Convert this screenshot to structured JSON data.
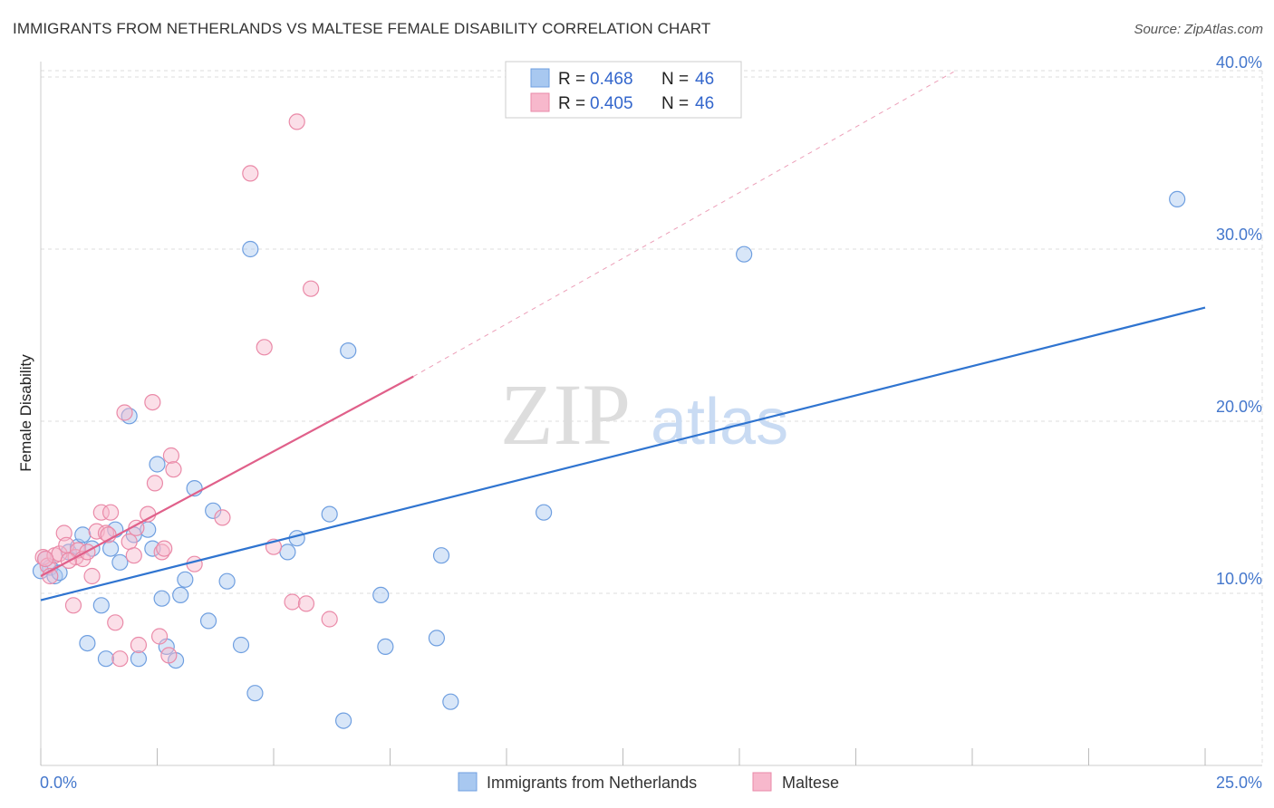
{
  "header": {
    "title": "IMMIGRANTS FROM NETHERLANDS VS MALTESE FEMALE DISABILITY CORRELATION CHART",
    "source": "Source: ZipAtlas.com"
  },
  "watermark": {
    "zip": "ZIP",
    "atlas": "atlas"
  },
  "colors": {
    "blue_fill": "#a8c8f0",
    "blue_stroke": "#6f9fe0",
    "blue_line": "#2f74d0",
    "pink_fill": "#f7b8cc",
    "pink_stroke": "#ea8aa8",
    "pink_line": "#e0608a",
    "grid": "#dddddd",
    "tick": "#4477cc"
  },
  "legend": {
    "rows": [
      {
        "r_label": "R =",
        "r_value": "0.468",
        "n_label": "N =",
        "n_value": "46"
      },
      {
        "r_label": "R =",
        "r_value": "0.405",
        "n_label": "N =",
        "n_value": "46"
      }
    ]
  },
  "chart_data": {
    "type": "scatter",
    "title": "IMMIGRANTS FROM NETHERLANDS VS MALTESE FEMALE DISABILITY CORRELATION CHART",
    "xlabel": "",
    "ylabel": "Female Disability",
    "xlim": [
      0,
      25
    ],
    "ylim": [
      0,
      41
    ],
    "x_tick_labels": [
      "0.0%",
      "25.0%"
    ],
    "y_ticks": [
      10,
      20,
      30,
      40
    ],
    "y_tick_labels": [
      "10.0%",
      "20.0%",
      "30.0%",
      "40.0%"
    ],
    "grid": "horizontal dashed",
    "legend_position": "top-center and bottom",
    "series": [
      {
        "name": "Immigrants from Netherlands",
        "color": "#a8c8f0",
        "r": 0.468,
        "n": 46,
        "trend": {
          "x0": 0.0,
          "y0": 9.6,
          "x1": 25.0,
          "y1": 26.6,
          "style": "solid"
        },
        "points": [
          [
            0.1,
            12.0
          ],
          [
            0.2,
            11.5
          ],
          [
            0.3,
            11.0
          ],
          [
            0.4,
            11.2
          ],
          [
            0.6,
            12.4
          ],
          [
            0.8,
            12.7
          ],
          [
            0.9,
            13.4
          ],
          [
            1.0,
            7.1
          ],
          [
            1.1,
            12.6
          ],
          [
            1.3,
            9.3
          ],
          [
            1.4,
            6.2
          ],
          [
            1.5,
            12.6
          ],
          [
            1.6,
            13.7
          ],
          [
            1.7,
            11.8
          ],
          [
            1.9,
            20.3
          ],
          [
            2.0,
            13.4
          ],
          [
            2.1,
            6.2
          ],
          [
            2.3,
            13.7
          ],
          [
            2.4,
            12.6
          ],
          [
            2.5,
            17.5
          ],
          [
            2.6,
            9.7
          ],
          [
            2.7,
            6.9
          ],
          [
            2.9,
            6.1
          ],
          [
            3.0,
            9.9
          ],
          [
            3.1,
            10.8
          ],
          [
            3.3,
            16.1
          ],
          [
            3.6,
            8.4
          ],
          [
            3.7,
            14.8
          ],
          [
            4.0,
            10.7
          ],
          [
            4.3,
            7.0
          ],
          [
            4.5,
            30.0
          ],
          [
            4.6,
            4.2
          ],
          [
            5.3,
            12.4
          ],
          [
            5.5,
            13.2
          ],
          [
            6.2,
            14.6
          ],
          [
            6.5,
            2.6
          ],
          [
            6.6,
            24.1
          ],
          [
            7.3,
            9.9
          ],
          [
            7.4,
            6.9
          ],
          [
            8.5,
            7.4
          ],
          [
            8.6,
            12.2
          ],
          [
            8.8,
            3.7
          ],
          [
            10.8,
            14.7
          ],
          [
            15.1,
            29.7
          ],
          [
            24.4,
            32.9
          ],
          [
            0.0,
            11.3
          ]
        ]
      },
      {
        "name": "Maltese",
        "color": "#f7b8cc",
        "r": 0.405,
        "n": 46,
        "trend": {
          "x0": 0.0,
          "y0": 11.0,
          "x1": 8.0,
          "y1": 22.6,
          "style": "solid",
          "dashed_extension": {
            "x1": 19.6,
            "y1": 40.3
          }
        },
        "points": [
          [
            0.05,
            12.1
          ],
          [
            0.15,
            11.6
          ],
          [
            0.2,
            11.0
          ],
          [
            0.3,
            12.2
          ],
          [
            0.4,
            12.3
          ],
          [
            0.5,
            13.5
          ],
          [
            0.55,
            12.8
          ],
          [
            0.7,
            9.3
          ],
          [
            0.75,
            12.1
          ],
          [
            0.8,
            12.5
          ],
          [
            0.9,
            12.0
          ],
          [
            1.0,
            12.4
          ],
          [
            1.1,
            11.0
          ],
          [
            1.2,
            13.6
          ],
          [
            1.3,
            14.7
          ],
          [
            1.4,
            13.5
          ],
          [
            1.5,
            14.7
          ],
          [
            1.6,
            8.3
          ],
          [
            1.7,
            6.2
          ],
          [
            1.8,
            20.5
          ],
          [
            1.9,
            13.0
          ],
          [
            2.0,
            12.2
          ],
          [
            2.05,
            13.8
          ],
          [
            2.1,
            7.0
          ],
          [
            2.3,
            14.6
          ],
          [
            2.4,
            21.1
          ],
          [
            2.45,
            16.4
          ],
          [
            2.55,
            7.5
          ],
          [
            2.6,
            12.4
          ],
          [
            2.65,
            12.6
          ],
          [
            2.75,
            6.4
          ],
          [
            2.8,
            18.0
          ],
          [
            2.85,
            17.2
          ],
          [
            3.3,
            11.7
          ],
          [
            3.9,
            14.4
          ],
          [
            4.5,
            34.4
          ],
          [
            4.8,
            24.3
          ],
          [
            5.0,
            12.7
          ],
          [
            5.4,
            9.5
          ],
          [
            5.5,
            37.4
          ],
          [
            5.7,
            9.4
          ],
          [
            5.8,
            27.7
          ],
          [
            6.2,
            8.5
          ],
          [
            0.1,
            12.0
          ],
          [
            0.6,
            11.9
          ],
          [
            1.45,
            13.4
          ]
        ]
      }
    ]
  },
  "bottom_legend": {
    "items": [
      {
        "label": "Immigrants from Netherlands"
      },
      {
        "label": "Maltese"
      }
    ]
  }
}
